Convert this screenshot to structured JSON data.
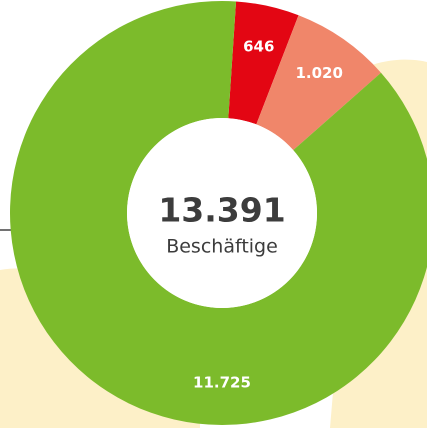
{
  "chart_data": {
    "type": "donut",
    "categories": [
      null,
      null,
      null
    ],
    "values": [
      646,
      1020,
      11725
    ],
    "value_labels": [
      "646",
      "1.020",
      "11.725"
    ],
    "colors": [
      "#e30613",
      "#f0866a",
      "#7cbb2b"
    ],
    "center_text": "13.391",
    "center_subtext": "Beschäftige"
  }
}
